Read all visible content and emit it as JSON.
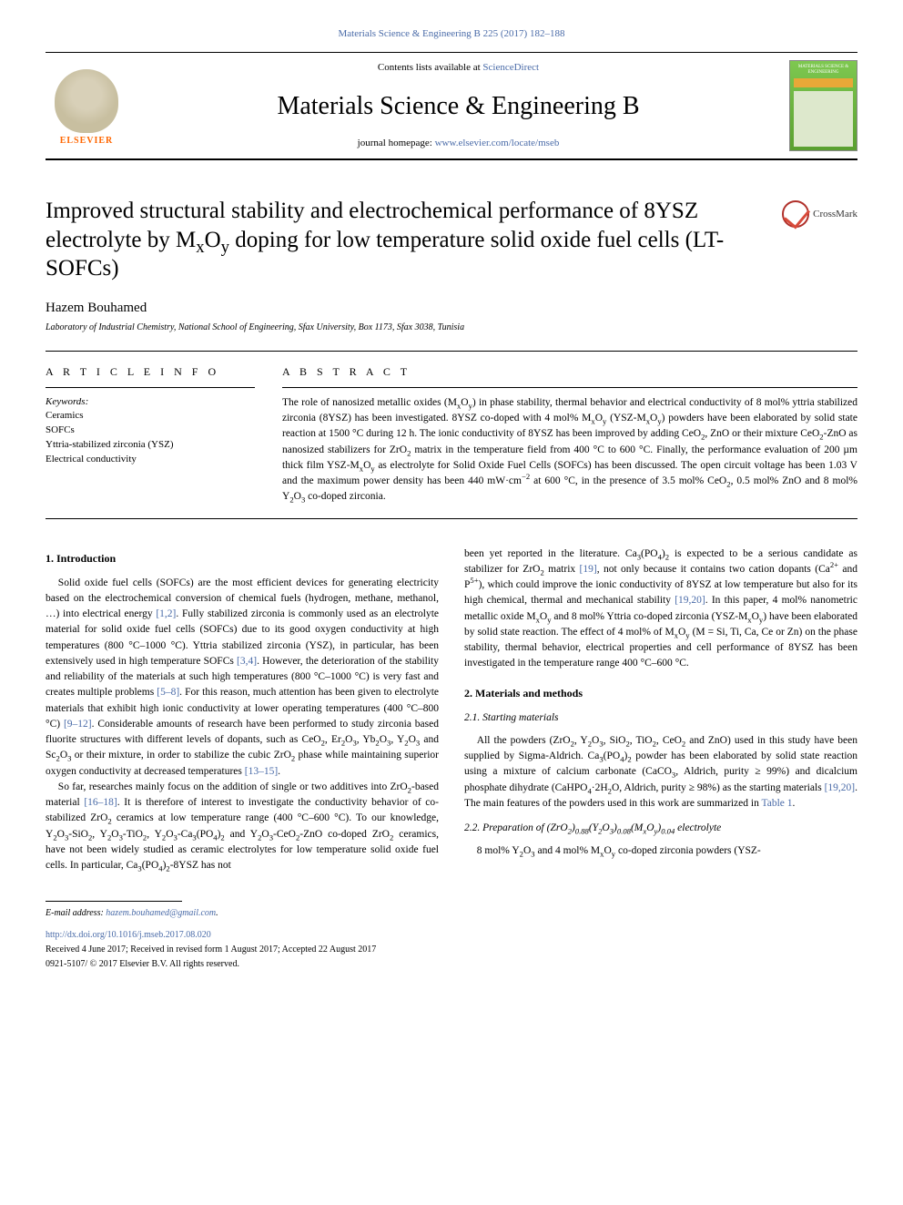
{
  "journal_ref": {
    "prefix": "Materials Science & Engineering B 225 (2017) 182–188",
    "link_text": "Materials Science & Engineering B 225 (2017) 182–188"
  },
  "header": {
    "contents_prefix": "Contents lists available at ",
    "contents_link": "ScienceDirect",
    "journal_name": "Materials Science & Engineering B",
    "homepage_prefix": "journal homepage: ",
    "homepage_link": "www.elsevier.com/locate/mseb",
    "elsevier_label": "ELSEVIER",
    "cover_title": "MATERIALS SCIENCE & ENGINEERING"
  },
  "crossmark": {
    "label": "CrossMark"
  },
  "article": {
    "title_html": "Improved structural stability and electrochemical performance of 8YSZ electrolyte by M<sub>x</sub>O<sub>y</sub> doping for low temperature solid oxide fuel cells (LT-SOFCs)",
    "author": "Hazem Bouhamed",
    "affiliation": "Laboratory of Industrial Chemistry, National School of Engineering, Sfax University, Box 1173, Sfax 3038, Tunisia"
  },
  "info": {
    "heading": "A R T I C L E  I N F O",
    "keywords_label": "Keywords:",
    "keywords": [
      "Ceramics",
      "SOFCs",
      "Yttria-stabilized zirconia (YSZ)",
      "Electrical conductivity"
    ]
  },
  "abstract": {
    "heading": "A B S T R A C T",
    "text_html": "The role of nanosized metallic oxides (M<sub>x</sub>O<sub>y</sub>) in phase stability, thermal behavior and electrical conductivity of 8 mol% yttria stabilized zirconia (8YSZ) has been investigated. 8YSZ co-doped with 4 mol% M<sub>x</sub>O<sub>y</sub> (YSZ-M<sub>x</sub>O<sub>y</sub>) powders have been elaborated by solid state reaction at 1500 °C during 12 h. The ionic conductivity of 8YSZ has been improved by adding CeO<sub>2</sub>, ZnO or their mixture CeO<sub>2</sub>-ZnO as nanosized stabilizers for ZrO<sub>2</sub> matrix in the temperature field from 400 °C to 600 °C. Finally, the performance evaluation of 200 µm thick film YSZ-M<sub>x</sub>O<sub>y</sub> as electrolyte for Solid Oxide Fuel Cells (SOFCs) has been discussed. The open circuit voltage has been 1.03 V and the maximum power density has been 440 mW·cm<sup>−2</sup> at 600 °C, in the presence of 3.5 mol% CeO<sub>2</sub>, 0.5 mol% ZnO and 8 mol% Y<sub>2</sub>O<sub>3</sub> co-doped zirconia."
  },
  "body": {
    "s1_heading": "1. Introduction",
    "p1_html": "Solid oxide fuel cells (SOFCs) are the most efficient devices for generating electricity based on the electrochemical conversion of chemical fuels (hydrogen, methane, methanol, …) into electrical energy <span class=\"cite\">[1,2]</span>. Fully stabilized zirconia is commonly used as an electrolyte material for solid oxide fuel cells (SOFCs) due to its good oxygen conductivity at high temperatures (800 °C–1000 °C). Yttria stabilized zirconia (YSZ), in particular, has been extensively used in high temperature SOFCs <span class=\"cite\">[3,4]</span>. However, the deterioration of the stability and reliability of the materials at such high temperatures (800 °C–1000 °C) is very fast and creates multiple problems <span class=\"cite\">[5–8]</span>. For this reason, much attention has been given to electrolyte materials that exhibit high ionic conductivity at lower operating temperatures (400 °C–800 °C) <span class=\"cite\">[9–12]</span>. Considerable amounts of research have been performed to study zirconia based fluorite structures with different levels of dopants, such as CeO<sub>2</sub>, Er<sub>2</sub>O<sub>3</sub>, Yb<sub>2</sub>O<sub>3</sub>, Y<sub>2</sub>O<sub>3</sub> and Sc<sub>2</sub>O<sub>3</sub> or their mixture, in order to stabilize the cubic ZrO<sub>2</sub> phase while maintaining superior oxygen conductivity at decreased temperatures <span class=\"cite\">[13–15]</span>.",
    "p2_html": "So far, researches mainly focus on the addition of single or two additives into ZrO<sub>2</sub>-based material <span class=\"cite\">[16–18]</span>. It is therefore of interest to investigate the conductivity behavior of co-stabilized ZrO<sub>2</sub> ceramics at low temperature range (400 °C–600 °C). To our knowledge, Y<sub>2</sub>O<sub>3</sub>-SiO<sub>2</sub>, Y<sub>2</sub>O<sub>3</sub>-TiO<sub>2</sub>, Y<sub>2</sub>O<sub>3</sub>-Ca<sub>3</sub>(PO<sub>4</sub>)<sub>2</sub> and Y<sub>2</sub>O<sub>3</sub>-CeO<sub>2</sub>-ZnO co-doped ZrO<sub>2</sub> ceramics, have not been widely studied as ceramic electrolytes for low temperature solid oxide fuel cells. In particular, Ca<sub>3</sub>(PO<sub>4</sub>)<sub>2</sub>-8YSZ has not",
    "p3_html": "been yet reported in the literature. Ca<sub>3</sub>(PO<sub>4</sub>)<sub>2</sub> is expected to be a serious candidate as stabilizer for ZrO<sub>2</sub> matrix <span class=\"cite\">[19]</span>, not only because it contains two cation dopants (Ca<sup>2+</sup> and P<sup>5+</sup>), which could improve the ionic conductivity of 8YSZ at low temperature but also for its high chemical, thermal and mechanical stability <span class=\"cite\">[19,20]</span>. In this paper, 4 mol% nanometric metallic oxide M<sub>x</sub>O<sub>y</sub> and 8 mol% Yttria co-doped zirconia (YSZ-M<sub>x</sub>O<sub>y</sub>) have been elaborated by solid state reaction. The effect of 4 mol% of M<sub>x</sub>O<sub>y</sub> (M = Si, Ti, Ca, Ce or Zn) on the phase stability, thermal behavior, electrical properties and cell performance of 8YSZ has been investigated in the temperature range 400 °C–600 °C.",
    "s2_heading": "2. Materials and methods",
    "s21_heading": "2.1. Starting materials",
    "p4_html": "All the powders (ZrO<sub>2</sub>, Y<sub>2</sub>O<sub>3</sub>, SiO<sub>2</sub>, TiO<sub>2</sub>, CeO<sub>2</sub> and ZnO) used in this study have been supplied by Sigma-Aldrich. Ca<sub>3</sub>(PO<sub>4</sub>)<sub>2</sub> powder has been elaborated by solid state reaction using a mixture of calcium carbonate (CaCO<sub>3</sub>, Aldrich, purity ≥ 99%) and dicalcium phosphate dihydrate (CaHPO<sub>4</sub>·2H<sub>2</sub>O, Aldrich, purity ≥ 98%) as the starting materials <span class=\"cite\">[19,20]</span>. The main features of the powders used in this work are summarized in <span class=\"cite\">Table 1</span>.",
    "s22_heading_html": "2.2. Preparation of (ZrO<sub>2</sub>)<sub>0.88</sub>(Y<sub>2</sub>O<sub>3</sub>)<sub>0.08</sub>(M<sub>x</sub>O<sub>y</sub>)<sub>0.04</sub> electrolyte",
    "p5_html": "8 mol% Y<sub>2</sub>O<sub>3</sub> and 4 mol% M<sub>x</sub>O<sub>y</sub> co-doped zirconia powders (YSZ-"
  },
  "footer": {
    "email_label": "E-mail address: ",
    "email": "hazem.bouhamed@gmail.com",
    "doi_link": "http://dx.doi.org/10.1016/j.mseb.2017.08.020",
    "dates": "Received 4 June 2017; Received in revised form 1 August 2017; Accepted 22 August 2017",
    "copyright": "0921-5107/ © 2017 Elsevier B.V. All rights reserved."
  },
  "colors": {
    "link": "#4a6ba8",
    "elsevier_orange": "#ff6600",
    "crossmark_ring": "#b0302a",
    "cover_green_top": "#7ec850",
    "cover_green_bottom": "#5aa030"
  }
}
